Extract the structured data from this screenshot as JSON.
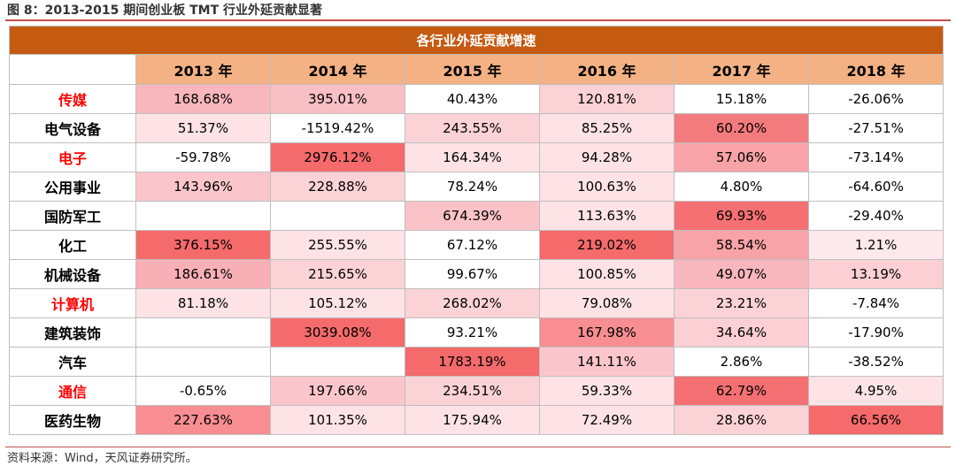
{
  "title": "图 8：2013-2015 期间创业板 TMT 行业外延贡献显著",
  "table": {
    "header": "各行业外延贡献增速",
    "years": [
      "2013 年",
      "2014 年",
      "2015 年",
      "2016 年",
      "2017 年",
      "2018 年"
    ],
    "rows": [
      {
        "industry": "传媒",
        "highlight": true,
        "values": [
          "168.68%",
          "395.01%",
          "40.43%",
          "120.81%",
          "15.18%",
          "-26.06%"
        ],
        "colors": [
          "#f8b7bd",
          "#f8bfc4",
          "#ffffff",
          "#fbd2d6",
          "#ffffff",
          "#ffffff"
        ]
      },
      {
        "industry": "电气设备",
        "highlight": false,
        "values": [
          "51.37%",
          "-1519.42%",
          "243.55%",
          "85.25%",
          "60.20%",
          "-27.51%"
        ],
        "colors": [
          "#fde3e6",
          "#ffffff",
          "#fbd2d6",
          "#fde3e6",
          "#f47b7d",
          "#ffffff"
        ]
      },
      {
        "industry": "电子",
        "highlight": true,
        "values": [
          "-59.78%",
          "2976.12%",
          "164.34%",
          "94.28%",
          "57.06%",
          "-73.14%"
        ],
        "colors": [
          "#ffffff",
          "#f56a6b",
          "#fde3e6",
          "#fde3e6",
          "#f8a3a7",
          "#ffffff"
        ]
      },
      {
        "industry": "公用事业",
        "highlight": false,
        "values": [
          "143.96%",
          "228.88%",
          "78.24%",
          "100.63%",
          "4.80%",
          "-64.60%"
        ],
        "colors": [
          "#fbc6cb",
          "#fbd2d6",
          "#ffffff",
          "#fde3e6",
          "#ffffff",
          "#ffffff"
        ]
      },
      {
        "industry": "国防军工",
        "highlight": false,
        "values": [
          "",
          "",
          "674.39%",
          "113.63%",
          "69.93%",
          "-29.40%"
        ],
        "colors": [
          "#ffffff",
          "#ffffff",
          "#f9c3c8",
          "#fde3e6",
          "#f57073",
          "#ffffff"
        ]
      },
      {
        "industry": "化工",
        "highlight": false,
        "values": [
          "376.15%",
          "255.55%",
          "67.12%",
          "219.02%",
          "58.54%",
          "1.21%"
        ],
        "colors": [
          "#f56a6b",
          "#fde3e6",
          "#ffffff",
          "#f56a6b",
          "#f8a3a7",
          "#fde9eb"
        ]
      },
      {
        "industry": "机械设备",
        "highlight": false,
        "values": [
          "186.61%",
          "215.65%",
          "99.67%",
          "100.85%",
          "49.07%",
          "13.19%"
        ],
        "colors": [
          "#f8b0b6",
          "#fbd2d6",
          "#ffffff",
          "#fde3e6",
          "#f8b7bd",
          "#fbcfd3"
        ]
      },
      {
        "industry": "计算机",
        "highlight": true,
        "values": [
          "81.18%",
          "105.12%",
          "268.02%",
          "79.08%",
          "23.21%",
          "-7.84%"
        ],
        "colors": [
          "#fde3e6",
          "#fde3e6",
          "#fbd2d6",
          "#fde3e6",
          "#fbd2d6",
          "#ffffff"
        ]
      },
      {
        "industry": "建筑装饰",
        "highlight": false,
        "values": [
          "",
          "3039.08%",
          "93.21%",
          "167.98%",
          "34.64%",
          "-17.90%"
        ],
        "colors": [
          "#ffffff",
          "#f56a6b",
          "#ffffff",
          "#f88e92",
          "#fbcfd3",
          "#ffffff"
        ]
      },
      {
        "industry": "汽车",
        "highlight": false,
        "values": [
          "",
          "",
          "1783.19%",
          "141.11%",
          "2.86%",
          "-38.52%"
        ],
        "colors": [
          "#ffffff",
          "#ffffff",
          "#f56a6b",
          "#fbc6cb",
          "#ffffff",
          "#ffffff"
        ]
      },
      {
        "industry": "通信",
        "highlight": true,
        "values": [
          "-0.65%",
          "197.66%",
          "234.51%",
          "59.33%",
          "62.79%",
          "4.95%"
        ],
        "colors": [
          "#ffffff",
          "#fbc6cb",
          "#fbd2d6",
          "#fde3e6",
          "#f57073",
          "#fde3e6"
        ]
      },
      {
        "industry": "医药生物",
        "highlight": false,
        "values": [
          "227.63%",
          "101.35%",
          "175.94%",
          "72.49%",
          "28.86%",
          "66.56%"
        ],
        "colors": [
          "#f88e92",
          "#fde3e6",
          "#fde3e6",
          "#fde3e6",
          "#fbd2d6",
          "#f56a6b"
        ]
      }
    ]
  },
  "source": "资料来源：Wind，天风证券研究所。"
}
